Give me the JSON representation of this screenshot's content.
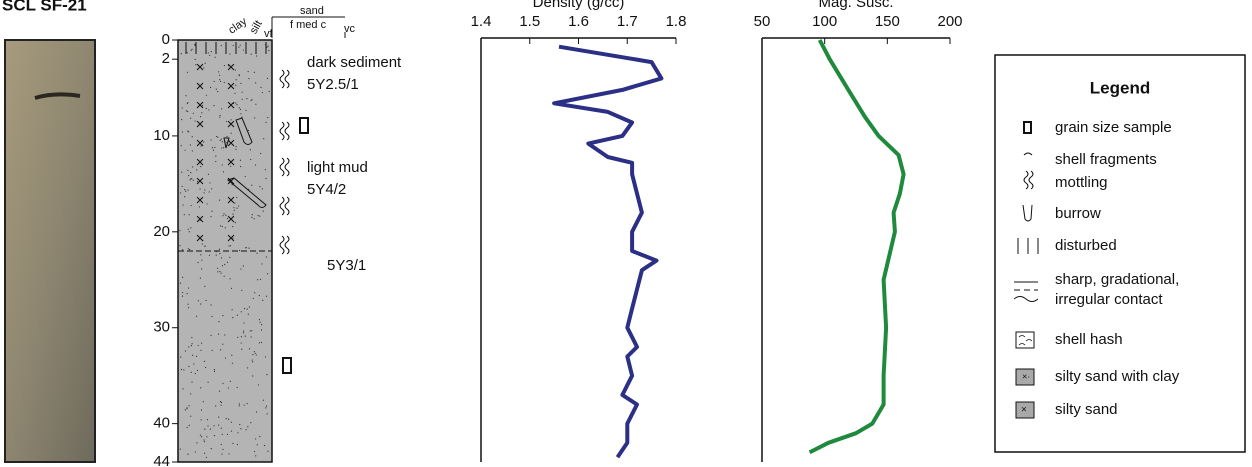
{
  "title": "SCL SF-21",
  "log": {
    "depth_lim": [
      0,
      44
    ],
    "depth_ticks": [
      0,
      2,
      10,
      20,
      30,
      40,
      44
    ],
    "header": {
      "clay": "clay",
      "silt": "silt",
      "vf": "vf",
      "sand": "sand",
      "sand_sizes": "f med c",
      "vc": "vc"
    },
    "annotations": [
      "dark sediment",
      "5Y2.5/1",
      "light mud",
      "5Y4/2",
      "5Y3/1"
    ]
  },
  "chart_data": [
    {
      "type": "line",
      "title": "Density (g/cc)",
      "color": "#2b2f86",
      "xlim": [
        1.4,
        1.8
      ],
      "xticks": [
        1.4,
        1.5,
        1.6,
        1.7,
        1.8
      ],
      "ylim": [
        0,
        44
      ],
      "depth": [
        0.7,
        2.3,
        4,
        5.2,
        6.6,
        7.5,
        8.6,
        10,
        10.8,
        12.2,
        12.8,
        14,
        16,
        18,
        20,
        22,
        23,
        24,
        26,
        28,
        30,
        32,
        33,
        35,
        37,
        38,
        40,
        42,
        43.5
      ],
      "values": [
        1.56,
        1.75,
        1.77,
        1.69,
        1.55,
        1.66,
        1.71,
        1.69,
        1.62,
        1.66,
        1.71,
        1.71,
        1.72,
        1.73,
        1.71,
        1.71,
        1.76,
        1.73,
        1.72,
        1.71,
        1.7,
        1.72,
        1.7,
        1.71,
        1.69,
        1.72,
        1.7,
        1.7,
        1.68
      ]
    },
    {
      "type": "line",
      "title": "Mag. Susc.",
      "color": "#1f8a3c",
      "xlim": [
        50,
        200
      ],
      "xticks": [
        50,
        100,
        150,
        200
      ],
      "ylim": [
        0,
        44
      ],
      "depth": [
        0,
        2,
        5,
        8,
        10,
        12,
        14,
        16,
        18,
        20,
        25,
        30,
        35,
        38,
        40,
        41,
        42,
        43
      ],
      "values": [
        96,
        104,
        118,
        132,
        143,
        159,
        163,
        160,
        155,
        156,
        147,
        149,
        147,
        147,
        138,
        125,
        103,
        88
      ]
    }
  ],
  "legend": {
    "title": "Legend",
    "items": [
      "grain size sample",
      "shell fragments",
      "mottling",
      "burrow",
      "disturbed",
      "sharp, gradational,",
      "irregular contact",
      "shell hash",
      "silty sand with clay",
      "silty sand"
    ]
  }
}
